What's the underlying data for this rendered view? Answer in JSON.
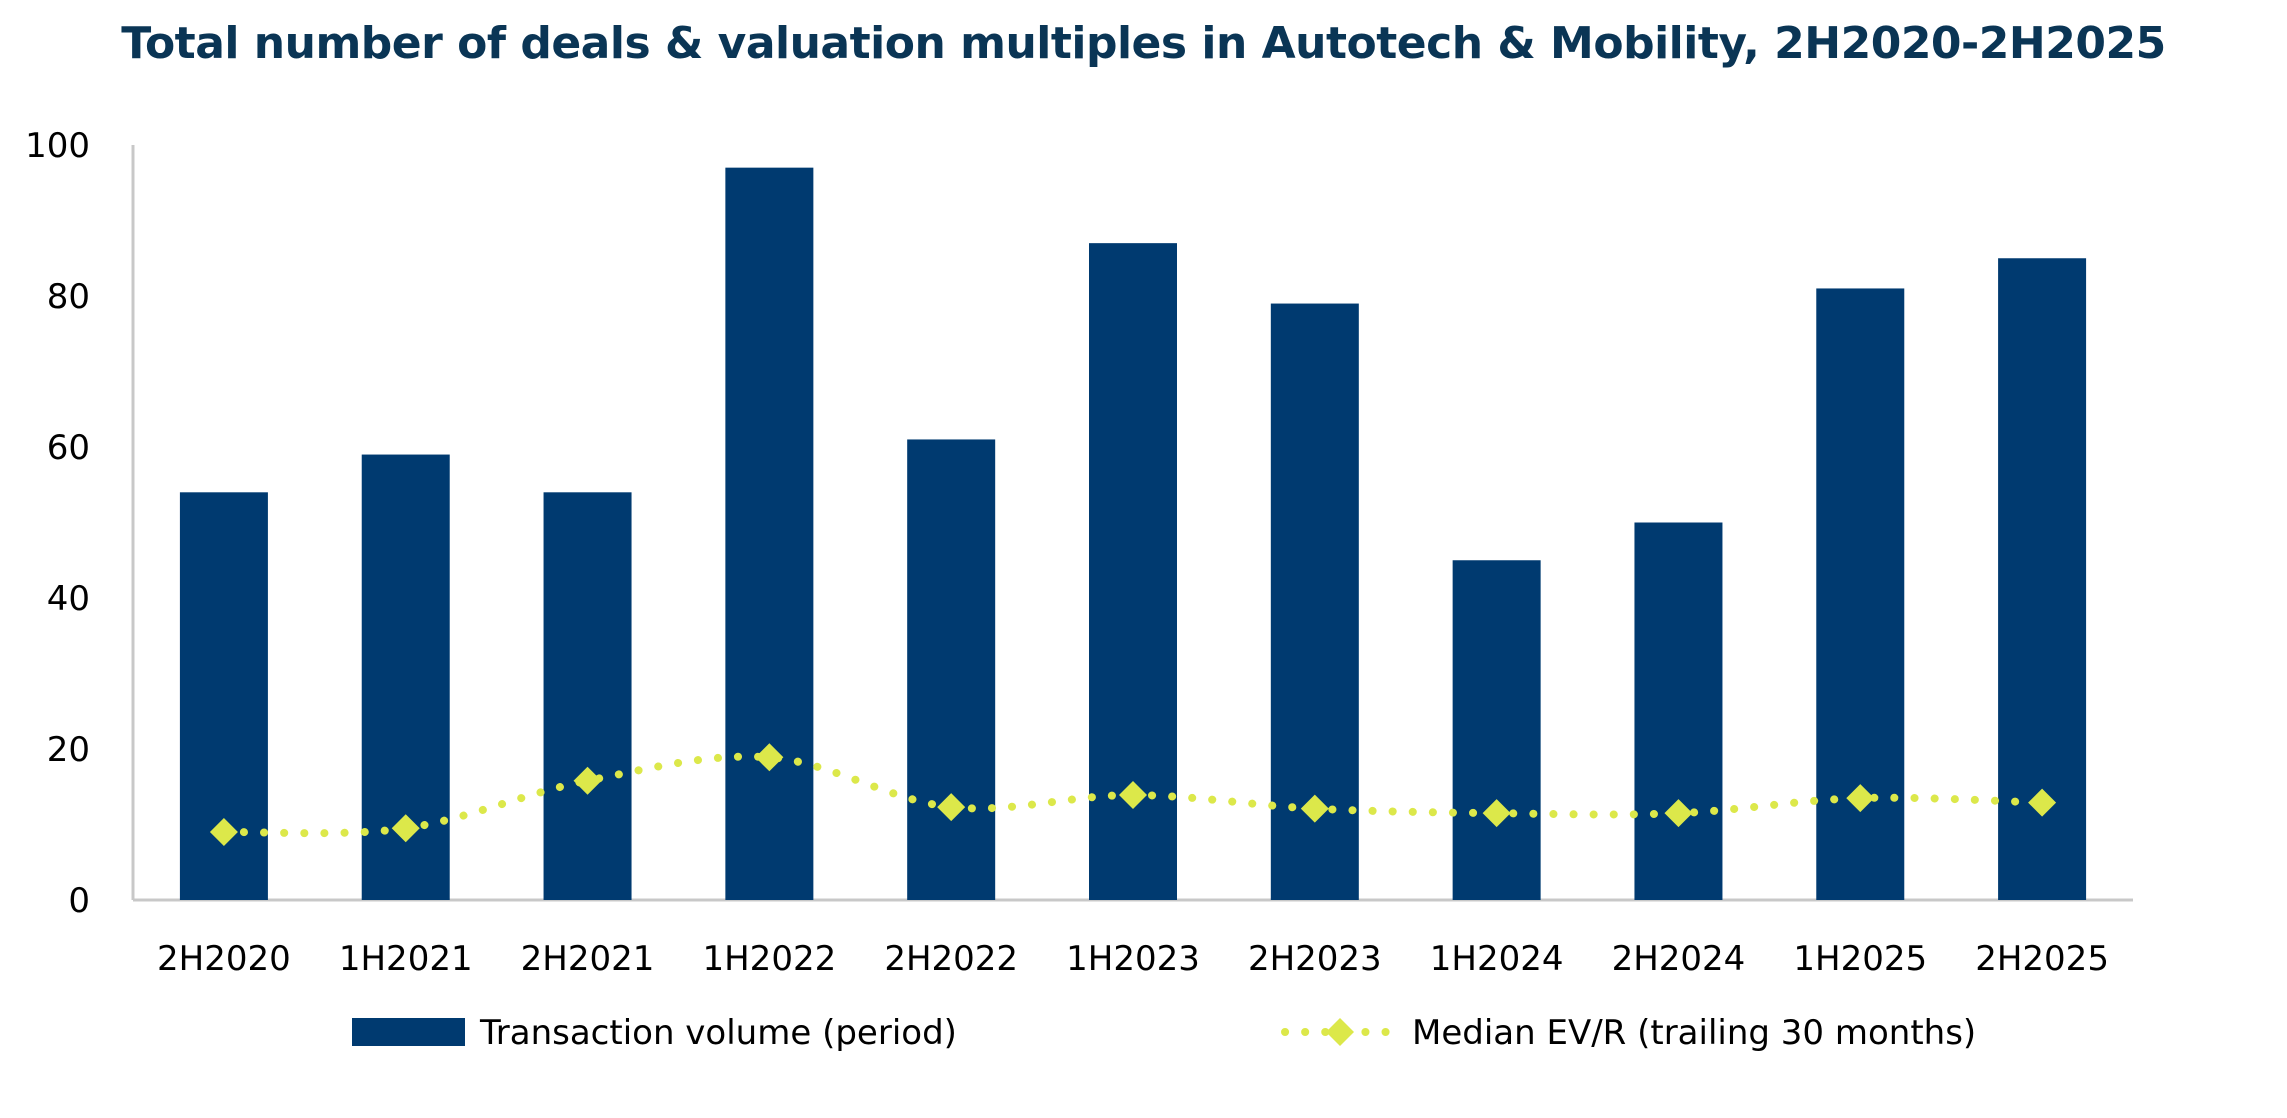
{
  "chart_data": {
    "type": "bar",
    "title": "Total number of deals & valuation multiples in Autotech & Mobility, 2H2020-2H2025",
    "categories": [
      "2H2020",
      "1H2021",
      "2H2021",
      "1H2022",
      "2H2022",
      "1H2023",
      "2H2023",
      "1H2024",
      "2H2024",
      "1H2025",
      "2H2025"
    ],
    "series": [
      {
        "name": "Transaction volume (period)",
        "kind": "bar",
        "color": "#003a70",
        "values": [
          54,
          59,
          54,
          97,
          61,
          87,
          79,
          45,
          50,
          81,
          85
        ]
      },
      {
        "name": "Median EV/R (trailing 30 months)",
        "kind": "line-dotted-diamond",
        "color": "#dce84a",
        "values": [
          9.0,
          9.5,
          15.8,
          18.9,
          12.3,
          13.9,
          12.1,
          11.5,
          11.5,
          13.5,
          12.9
        ]
      }
    ],
    "yticks": [
      0,
      20,
      40,
      60,
      80,
      100
    ],
    "ylim": [
      0,
      100
    ],
    "xlabel": "",
    "ylabel": "",
    "grid": false,
    "legend": "bottom"
  }
}
